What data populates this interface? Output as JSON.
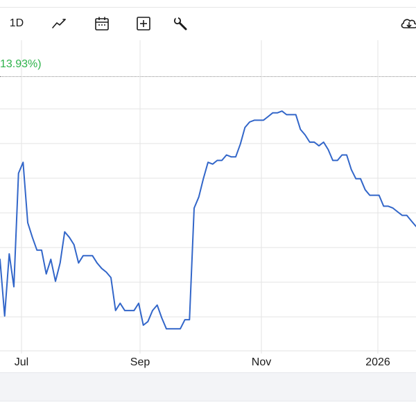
{
  "toolbar": {
    "interval_label": "1D",
    "icons": [
      "line-chart-icon",
      "calendar-icon",
      "add-indicator-icon",
      "wrench-icon",
      "cloud-download-icon"
    ]
  },
  "change_percent": "13.93%)",
  "colors": {
    "line": "#3266c9",
    "positive": "#2db24a",
    "grid": "#e3e3e3"
  },
  "chart_data": {
    "type": "line",
    "title": "",
    "xlabel": "",
    "ylabel": "",
    "x_ticks": [
      "Jul",
      "Sep",
      "Nov",
      "2026"
    ],
    "grid": true,
    "series": [
      {
        "values": [
          380,
          349,
          383,
          365,
          427,
          433,
          400,
          392,
          385,
          385,
          372,
          380,
          368,
          378,
          395,
          392,
          388,
          378,
          382,
          382,
          382,
          378,
          375,
          373,
          370,
          352,
          356,
          352,
          352,
          352,
          356,
          344,
          346,
          352,
          355,
          348,
          342,
          342,
          342,
          342,
          347,
          347,
          408,
          414,
          424,
          433,
          432,
          434,
          434,
          437,
          436,
          436,
          443,
          452,
          455,
          456,
          456,
          456,
          458,
          460,
          460,
          461,
          459,
          459,
          459,
          451,
          448,
          444,
          444,
          442,
          444,
          440,
          434,
          434,
          437,
          437,
          429,
          424,
          424,
          418,
          415,
          415,
          415,
          409,
          409,
          408,
          406,
          404,
          404,
          401,
          398
        ]
      }
    ]
  }
}
